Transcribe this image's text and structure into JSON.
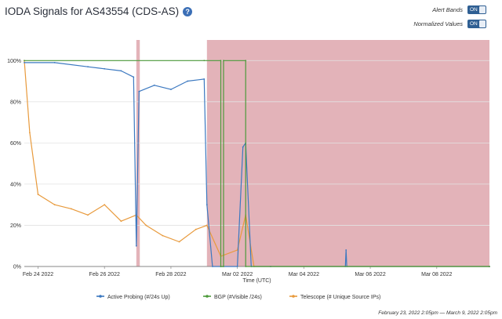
{
  "header": {
    "title": "IODA Signals for AS43554 (CDS-AS)",
    "help_icon": "help-circle-icon"
  },
  "controls": {
    "alert_bands": {
      "label": "Alert Bands",
      "state": "ON"
    },
    "normalized_values": {
      "label": "Normalized Values",
      "state": "ON"
    }
  },
  "footer": {
    "date_range": "February 23, 2022 2:05pm — March 9, 2022 2:05pm"
  },
  "chart_data": {
    "type": "line",
    "xlabel": "Time (UTC)",
    "ylabel": "",
    "x_range": [
      "2022-02-23T14:05",
      "2022-03-09T14:05"
    ],
    "x_ticks": [
      "Feb 24 2022",
      "Feb 26 2022",
      "Feb 28 2022",
      "Mar 02 2022",
      "Mar 04 2022",
      "Mar 06 2022",
      "Mar 08 2022"
    ],
    "y_ticks": [
      "0%",
      "20%",
      "40%",
      "60%",
      "80%",
      "100%"
    ],
    "ylim": [
      0,
      110
    ],
    "grid": true,
    "legend_position": "bottom",
    "colors": {
      "active_probing": "#3b78c0",
      "bgp": "#4c9a3a",
      "telescope": "#e89a3c",
      "alert_band": "#d99aa2"
    },
    "alert_bands": [
      {
        "start": "2022-02-26T23:00",
        "end": "2022-02-27T01:30"
      },
      {
        "start": "2022-03-01T02:00",
        "end": "2022-03-09T14:05"
      }
    ],
    "series": [
      {
        "name": "Active Probing (#/24s Up)",
        "x": [
          "2022-02-23T14:05",
          "2022-02-24T12:00",
          "2022-02-25T12:00",
          "2022-02-26T00:00",
          "2022-02-26T12:00",
          "2022-02-26T21:00",
          "2022-02-26T23:00",
          "2022-02-27T01:00",
          "2022-02-27T12:00",
          "2022-02-28T00:00",
          "2022-02-28T12:00",
          "2022-03-01T00:00",
          "2022-03-01T02:00",
          "2022-03-01T06:00",
          "2022-03-01T12:00",
          "2022-03-02T00:00",
          "2022-03-02T04:00",
          "2022-03-02T06:00",
          "2022-03-02T10:00",
          "2022-03-03T00:00",
          "2022-03-05T06:00",
          "2022-03-05T06:30",
          "2022-03-05T07:00",
          "2022-03-09T14:05"
        ],
        "values": [
          99,
          99,
          97,
          96,
          95,
          92,
          10,
          85,
          88,
          86,
          90,
          91,
          30,
          0,
          0,
          0,
          58,
          60,
          0,
          0,
          0,
          8,
          0,
          0
        ]
      },
      {
        "name": "BGP (#Visible /24s)",
        "x": [
          "2022-02-23T14:05",
          "2022-03-01T00:00",
          "2022-03-01T12:00",
          "2022-03-01T12:00",
          "2022-03-01T14:00",
          "2022-03-01T14:00",
          "2022-03-02T06:00",
          "2022-03-02T06:00",
          "2022-03-09T14:05"
        ],
        "values": [
          100,
          100,
          100,
          0,
          0,
          100,
          100,
          0,
          0
        ]
      },
      {
        "name": "Telescope (# Unique Source IPs)",
        "x": [
          "2022-02-23T14:05",
          "2022-02-23T18:00",
          "2022-02-24T00:00",
          "2022-02-24T12:00",
          "2022-02-25T00:00",
          "2022-02-25T12:00",
          "2022-02-26T00:00",
          "2022-02-26T12:00",
          "2022-02-26T23:00",
          "2022-02-27T06:00",
          "2022-02-27T18:00",
          "2022-02-28T06:00",
          "2022-02-28T18:00",
          "2022-03-01T02:00",
          "2022-03-01T12:00",
          "2022-03-02T00:00",
          "2022-03-02T06:00",
          "2022-03-02T12:00",
          "2022-03-03T00:00",
          "2022-03-09T14:05"
        ],
        "values": [
          100,
          65,
          35,
          30,
          28,
          25,
          30,
          22,
          25,
          20,
          15,
          12,
          18,
          20,
          5,
          8,
          25,
          0,
          0,
          0
        ]
      }
    ]
  }
}
